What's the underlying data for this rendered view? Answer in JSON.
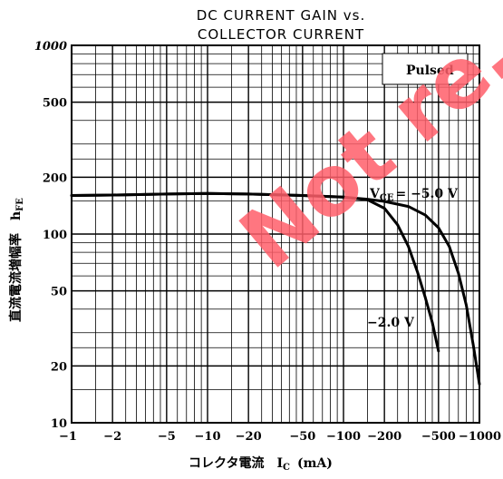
{
  "chart_data": {
    "type": "line",
    "title": "DC CURRENT GAIN vs.",
    "subtitle": "COLLECTOR CURRENT",
    "xlabel": "コレクタ電流　I",
    "xlabel_sub": "C",
    "xlabel_unit": "(mA)",
    "ylabel": "直流電流増幅率　h",
    "ylabel_sub": "FE",
    "x_scale": "log",
    "y_scale": "log",
    "xlim": [
      1,
      1000
    ],
    "ylim": [
      10,
      1000
    ],
    "x_tick_labels": [
      "−1",
      "−2",
      "−5",
      "−10",
      "−20",
      "−50",
      "−100",
      "−200",
      "−500",
      "−1000"
    ],
    "x_tick_values": [
      1,
      2,
      5,
      10,
      20,
      50,
      100,
      200,
      500,
      1000
    ],
    "y_tick_labels": [
      "1000",
      "500",
      "200",
      "100",
      "50",
      "20",
      "10"
    ],
    "y_tick_values": [
      1000,
      500,
      200,
      100,
      50,
      20,
      10
    ],
    "grid": true,
    "legend_box": "Pulsed",
    "series": [
      {
        "name": "VCE = −5.0 V",
        "x": [
          1,
          2,
          5,
          10,
          20,
          50,
          100,
          150,
          200,
          300,
          400,
          500,
          600,
          700,
          800,
          900,
          1000
        ],
        "y": [
          160,
          161,
          163,
          164,
          163,
          160,
          157,
          153,
          149,
          140,
          126,
          108,
          86,
          62,
          42,
          26,
          16
        ]
      },
      {
        "name": "−2.0 V",
        "x": [
          1,
          2,
          5,
          10,
          20,
          50,
          100,
          150,
          200,
          250,
          300,
          350,
          400,
          450,
          500
        ],
        "y": [
          160,
          161,
          163,
          164,
          163,
          160,
          157,
          152,
          137,
          112,
          86,
          63,
          46,
          34,
          24
        ]
      }
    ],
    "annotations": [
      {
        "prefix": "V",
        "sub": "CE",
        "text": "= −5.0 V"
      },
      {
        "text": "−2.0 V"
      }
    ]
  },
  "watermark": "Not re… for n",
  "colors": {
    "watermark": "#ff5f6a",
    "ink": "#000000"
  }
}
